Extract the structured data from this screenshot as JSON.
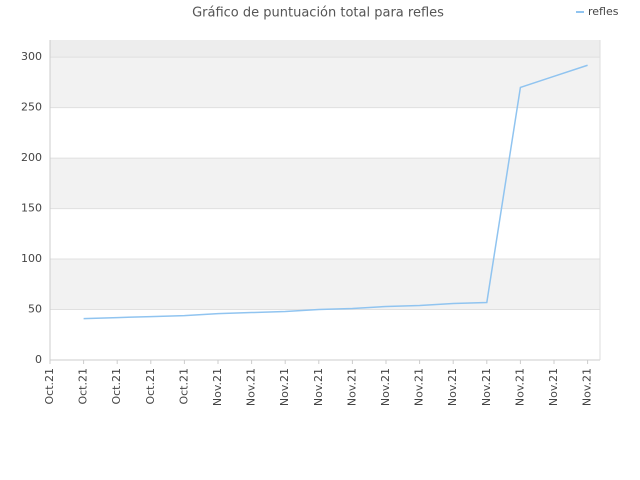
{
  "chart_data": {
    "type": "line",
    "title": "Gráfico de puntuación total para refles",
    "categories": [
      "Oct.21",
      "Oct.21",
      "Oct.21",
      "Oct.21",
      "Oct.21",
      "Nov.21",
      "Nov.21",
      "Nov.21",
      "Nov.21",
      "Nov.21",
      "Nov.21",
      "Nov.21",
      "Nov.21",
      "Nov.21",
      "Nov.21",
      "Nov.21",
      "Nov.21"
    ],
    "series": [
      {
        "name": "refles",
        "color": "#90c4f0",
        "values": [
          null,
          41,
          42,
          43,
          44,
          46,
          47,
          48,
          50,
          51,
          53,
          54,
          56,
          57,
          270,
          281,
          292
        ]
      }
    ],
    "ylim": [
      0,
      317
    ],
    "yticks": [
      0,
      50,
      100,
      150,
      200,
      250,
      300
    ],
    "grid": true,
    "legend": "top-right"
  }
}
